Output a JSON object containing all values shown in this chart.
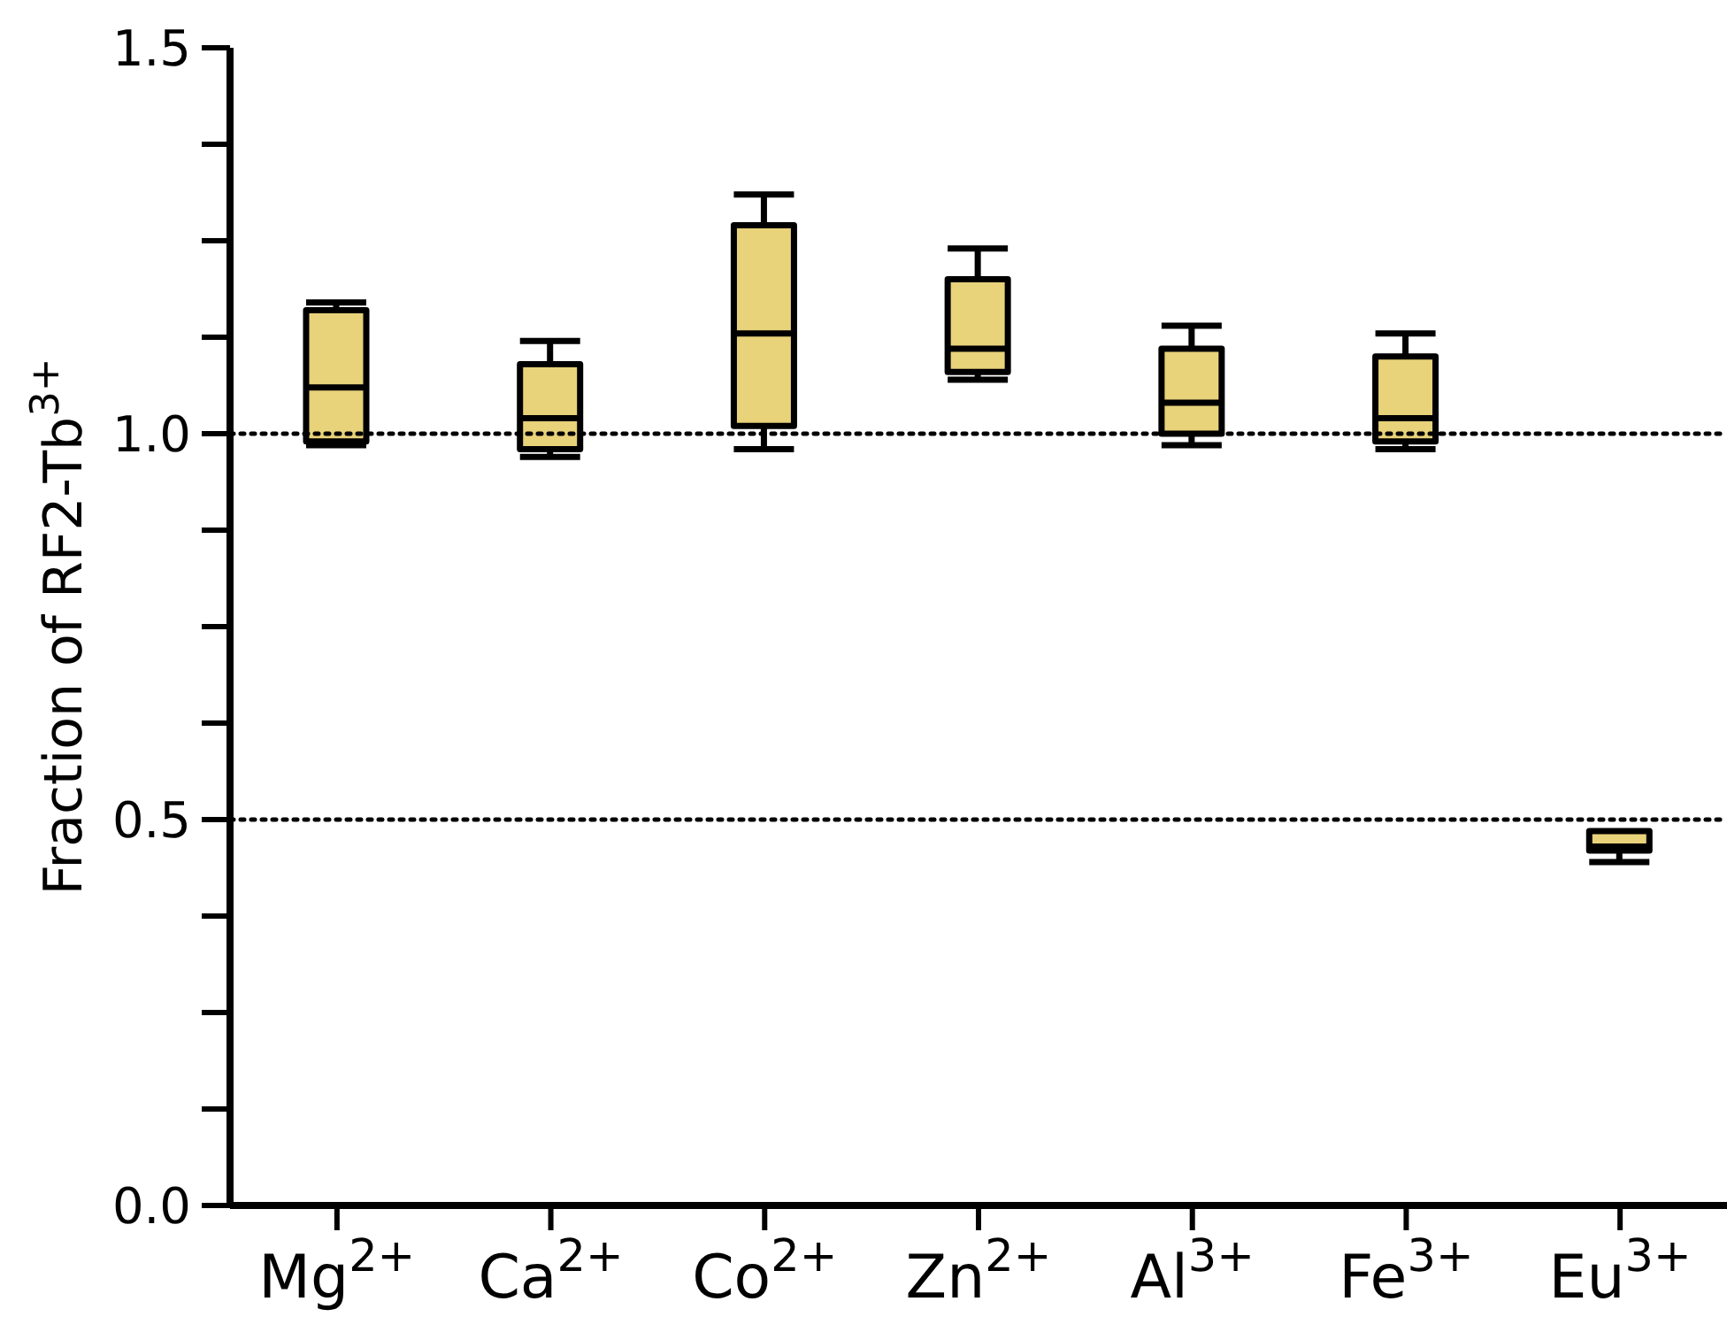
{
  "chart_data": {
    "type": "box",
    "ylabel": "Fraction of RF2-Tb$^{3+}$",
    "categories": [
      "Mg$^{2+}$",
      "Ca$^{2+}$",
      "Co$^{2+}$",
      "Zn$^{2+}$",
      "Al$^{3+}$",
      "Fe$^{3+}$",
      "Eu$^{3+}$"
    ],
    "color": "#e8d27a",
    "boxes": [
      {
        "low": 0.985,
        "q1": 0.99,
        "median": 1.06,
        "q3": 1.16,
        "high": 1.17
      },
      {
        "low": 0.97,
        "q1": 0.98,
        "median": 1.02,
        "q3": 1.09,
        "high": 1.12
      },
      {
        "low": 0.98,
        "q1": 1.01,
        "median": 1.13,
        "q3": 1.27,
        "high": 1.31
      },
      {
        "low": 1.07,
        "q1": 1.08,
        "median": 1.11,
        "q3": 1.2,
        "high": 1.24
      },
      {
        "low": 0.985,
        "q1": 1.0,
        "median": 1.04,
        "q3": 1.11,
        "high": 1.14
      },
      {
        "low": 0.98,
        "q1": 0.99,
        "median": 1.02,
        "q3": 1.1,
        "high": 1.13
      },
      {
        "low": 0.445,
        "q1": 0.46,
        "median": 0.465,
        "q3": 0.485,
        "high": 0.485
      }
    ],
    "ylim": [
      0,
      1.5
    ],
    "yticks": [
      {
        "value": 0,
        "label": "0.0"
      },
      {
        "value": 0.125,
        "label": null
      },
      {
        "value": 0.25,
        "label": null
      },
      {
        "value": 0.375,
        "label": null
      },
      0.5,
      {
        "value": 0.625,
        "label": null
      },
      {
        "value": 0.75,
        "label": null
      },
      {
        "value": 0.875,
        "label": null
      },
      {
        "value": 1,
        "label": "1.0"
      },
      {
        "value": 1.125,
        "label": null
      },
      {
        "value": 1.25,
        "label": null
      },
      {
        "value": 1.375,
        "label": null
      },
      1.5
    ],
    "ref_lines": [
      {
        "axis": "y",
        "value": 1,
        "line_style": "dotted",
        "color": "#000000"
      },
      {
        "axis": "y",
        "value": 0.5,
        "line_style": "dotted",
        "color": "#000000"
      }
    ],
    "grid": false,
    "legend": false
  }
}
